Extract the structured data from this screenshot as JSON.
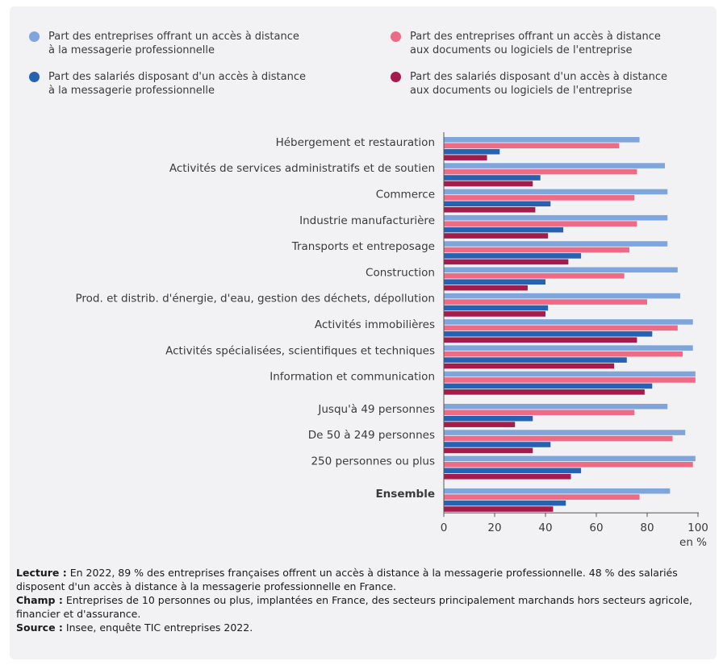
{
  "legend": [
    {
      "text": "Part des entreprises offrant un accès à distance\nà la messagerie professionnelle",
      "color": "#7ea6dc"
    },
    {
      "text": "Part des entreprises offrant un accès à distance\naux documents ou logiciels de l'entreprise",
      "color": "#ee6a85"
    },
    {
      "text": "Part des salariés disposant d'un accès à distance\nà la messagerie professionnelle",
      "color": "#2563b2"
    },
    {
      "text": "Part des salariés disposant d'un accès à distance\naux documents ou logiciels de l'entreprise",
      "color": "#a51c4a"
    }
  ],
  "chart_data": {
    "type": "bar",
    "orientation": "horizontal",
    "categories": [
      "Hébergement et restauration",
      "Activités de services administratifs et de soutien",
      "Commerce",
      "Industrie manufacturière",
      "Transports et entreposage",
      "Construction",
      "Prod. et distrib. d'énergie, d'eau, gestion des déchets, dépollution",
      "Activités immobilières",
      "Activités spécialisées, scientifiques et techniques",
      "Information et communication",
      "Jusqu'à 49 personnes",
      "De 50 à 249 personnes",
      "250 personnes ou plus",
      "Ensemble"
    ],
    "bold_categories": [
      "Ensemble"
    ],
    "groups": [
      [
        0,
        1,
        2,
        3,
        4,
        5,
        6,
        7,
        8,
        9
      ],
      [
        10,
        11,
        12
      ],
      [
        13
      ]
    ],
    "series": [
      {
        "name": "Part des entreprises offrant un accès à distance à la messagerie professionnelle",
        "color": "#7ea6dc",
        "values": [
          77,
          87,
          88,
          88,
          88,
          92,
          93,
          98,
          98,
          99,
          88,
          95,
          99,
          89
        ]
      },
      {
        "name": "Part des entreprises offrant un accès à distance aux documents ou logiciels de l'entreprise",
        "color": "#ee6a85",
        "values": [
          69,
          76,
          75,
          76,
          73,
          71,
          80,
          92,
          94,
          99,
          75,
          90,
          98,
          77
        ]
      },
      {
        "name": "Part des salariés disposant d'un accès à distance à la messagerie professionnelle",
        "color": "#2563b2",
        "values": [
          22,
          38,
          42,
          47,
          54,
          40,
          41,
          82,
          72,
          82,
          35,
          42,
          54,
          48
        ]
      },
      {
        "name": "Part des salariés disposant d'un accès à distance aux documents ou logiciels de l'entreprise",
        "color": "#a51c4a",
        "values": [
          17,
          35,
          36,
          41,
          49,
          33,
          40,
          76,
          67,
          79,
          28,
          35,
          50,
          43
        ]
      }
    ],
    "xlim": [
      0,
      100
    ],
    "xticks": [
      0,
      20,
      40,
      60,
      80,
      100
    ],
    "xunit": "en %",
    "grid": false
  },
  "notes": [
    {
      "label": "Lecture :",
      "text": " En 2022, 89 % des entreprises françaises offrent un accès à distance à la messagerie professionnelle. 48 % des salariés disposent d'un accès à distance à la messagerie professionnelle en France."
    },
    {
      "label": "Champ :",
      "text": " Entreprises de 10 personnes ou plus, implantées en France, des secteurs principalement marchands hors secteurs agricole, financier et d'assurance."
    },
    {
      "label": "Source :",
      "text": " Insee, enquête TIC entreprises 2022."
    }
  ]
}
